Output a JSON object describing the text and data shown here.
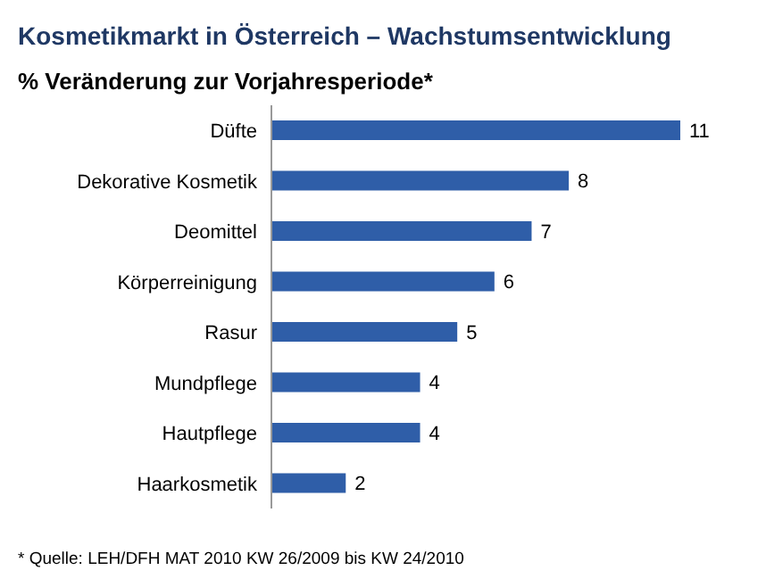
{
  "chart_data": {
    "type": "bar",
    "orientation": "horizontal",
    "title": "Kosmetikmarkt in Österreich – Wachstumsentwicklung",
    "subtitle": "% Veränderung zur Vorjahresperiode*",
    "categories": [
      "Düfte",
      "Dekorative Kosmetik",
      "Deomittel",
      "Körperreinigung",
      "Rasur",
      "Mundpflege",
      "Hautpflege",
      "Haarkosmetik"
    ],
    "values": [
      11,
      8,
      7,
      6,
      5,
      4,
      4,
      2
    ],
    "color": "#2f5ea8",
    "data_labels": true,
    "annotations": [
      "* Quelle: LEH/DFH MAT 2010 KW 26/2009 bis KW 24/2010"
    ]
  }
}
